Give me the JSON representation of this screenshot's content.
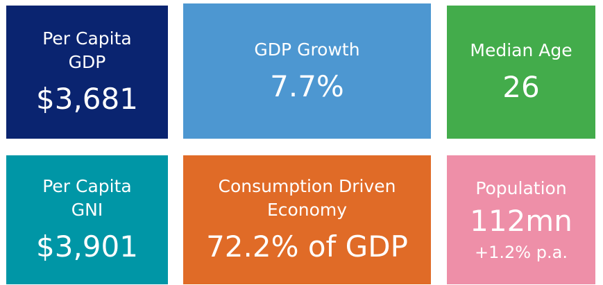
{
  "tiles": [
    {
      "label": "Per Capita GDP",
      "value": "$3,681"
    },
    {
      "label": "GDP Growth",
      "value": "7.7%"
    },
    {
      "label": "Median Age",
      "value": "26"
    },
    {
      "label": "Per Capita GNI",
      "value": "$3,901"
    },
    {
      "label": "Consumption Driven Economy",
      "value": "72.2% of GDP"
    },
    {
      "label": "Population",
      "value": "112mn",
      "note": "+1.2% p.a."
    }
  ]
}
